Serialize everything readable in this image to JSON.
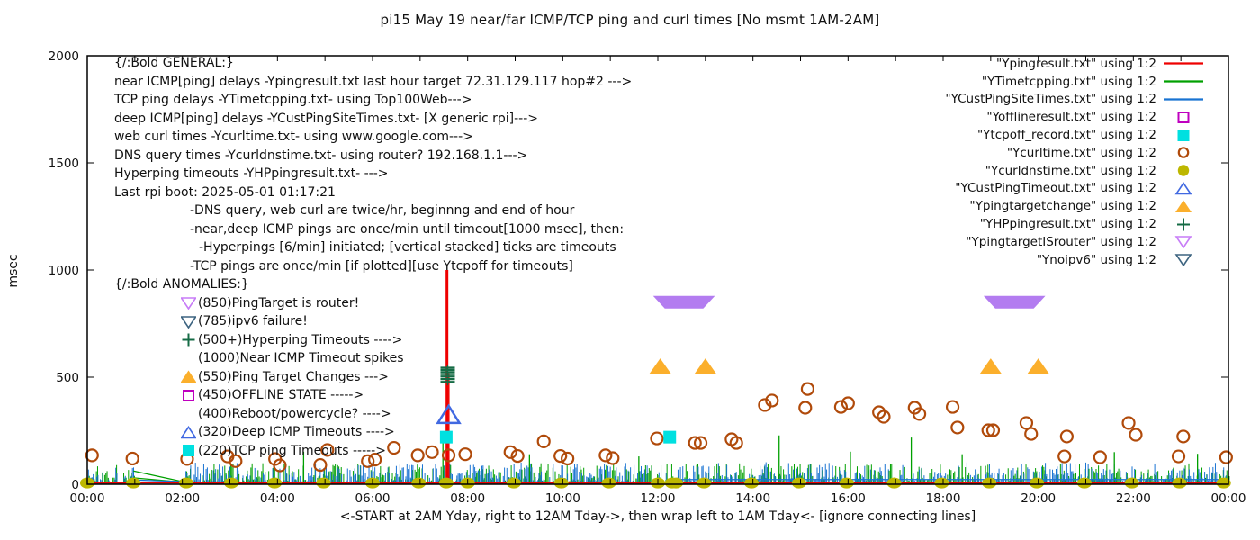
{
  "title": "pi15 May 19  near/far ICMP/TCP ping and curl times [No msmt 1AM-2AM]",
  "xlabel": "<-START at 2AM Yday, right to 12AM Tday->, then wrap left to 1AM Tday<- [ignore connecting lines]",
  "ylabel": "msec",
  "annotations": {
    "general": {
      "lines": [
        {
          "text": "{/:Bold GENERAL:}",
          "indent": 0
        },
        {
          "text": "near ICMP[ping] delays -Ypingresult.txt last hour target 72.31.129.117 hop#2 --->",
          "indent": 0
        },
        {
          "text": "TCP ping delays -YTimetcpping.txt- using Top100Web--->",
          "indent": 0
        },
        {
          "text": "deep ICMP[ping] delays -YCustPingSiteTimes.txt- [X generic rpi]--->",
          "indent": 0
        },
        {
          "text": "web curl times -Ycurltime.txt- using www.google.com--->",
          "indent": 0
        },
        {
          "text": "DNS query times -Ycurldnstime.txt- using router? 192.168.1.1--->",
          "indent": 0
        },
        {
          "text": "Hyperping timeouts -YHPpingresult.txt- --->",
          "indent": 0
        },
        {
          "text": "Last rpi boot: 2025-05-01 01:17:21",
          "indent": 0
        },
        {
          "text": "-DNS query, web curl are twice/hr, beginnng and end of hour",
          "indent": 1
        },
        {
          "text": "-near,deep ICMP pings are once/min until timeout[1000 msec], then:",
          "indent": 1
        },
        {
          "text": "-Hyperpings [6/min] initiated; [vertical stacked] ticks are timeouts",
          "indent": 2
        },
        {
          "text": "-TCP pings are once/min [if plotted][use Ytcpoff for timeouts]",
          "indent": 1
        }
      ]
    },
    "anomalies": {
      "header": "{/:Bold ANOMALIES:}",
      "lines": [
        {
          "marker": "tri-down-open",
          "color": "#c77cf7",
          "text": "(850)PingTarget is router!"
        },
        {
          "marker": "tri-down-open",
          "color": "#3d6480",
          "text": "(785)ipv6 failure!"
        },
        {
          "marker": "plus",
          "color": "#156b45",
          "text": "(500+)Hyperping Timeouts ---->"
        },
        {
          "marker": "none",
          "color": "",
          "text": "(1000)Near ICMP Timeout spikes"
        },
        {
          "marker": "tri-up-filled",
          "color": "#fbaf2c",
          "text": "(550)Ping Target Changes --->"
        },
        {
          "marker": "square-open",
          "color": "#bf00bf",
          "text": "(450)OFFLINE STATE ----->"
        },
        {
          "marker": "none",
          "color": "",
          "text": "(400)Reboot/powercycle? ---->"
        },
        {
          "marker": "tri-up-open",
          "color": "#4169e1",
          "text": "(320)Deep ICMP Timeouts ---->"
        },
        {
          "marker": "square-filled",
          "color": "#00e0e0",
          "text": "(220)TCP ping Timeouts ----->"
        }
      ]
    }
  },
  "legend": {
    "items": [
      {
        "label": "\"Ypingresult.txt\" using 1:2",
        "marker": "line",
        "color": "#ee0000"
      },
      {
        "label": "\"YTimetcpping.txt\" using 1:2",
        "marker": "line",
        "color": "#00a000"
      },
      {
        "label": "\"YCustPingSiteTimes.txt\" using 1:2",
        "marker": "line",
        "color": "#1973d2"
      },
      {
        "label": "\"Yofflineresult.txt\" using 1:2",
        "marker": "square-open",
        "color": "#bf00bf"
      },
      {
        "label": "\"Ytcpoff_record.txt\" using 1:2",
        "marker": "square-filled",
        "color": "#00e0e0"
      },
      {
        "label": "\"Ycurltime.txt\" using 1:2",
        "marker": "circle-open",
        "color": "#b04a0a"
      },
      {
        "label": "\"Ycurldnstime.txt\" using 1:2",
        "marker": "circle-filled",
        "color": "#bdb700"
      },
      {
        "label": "\"YCustPingTimeout.txt\" using 1:2",
        "marker": "tri-up-open",
        "color": "#4169e1"
      },
      {
        "label": "\"Ypingtargetchange\" using 1:2",
        "marker": "tri-up-filled",
        "color": "#fbaf2c"
      },
      {
        "label": "\"YHPpingresult.txt\" using 1:2",
        "marker": "plus",
        "color": "#156b45"
      },
      {
        "label": "\"YpingtargetISrouter\" using 1:2",
        "marker": "tri-down-open",
        "color": "#c77cf7"
      },
      {
        "label": "\"Ynoipv6\" using 1:2",
        "marker": "tri-down-open",
        "color": "#3d6480"
      }
    ]
  },
  "chart_data": {
    "type": "mixed",
    "title": "pi15 May 19  near/far ICMP/TCP ping and curl times [No msmt 1AM-2AM]",
    "x_axis": {
      "range_hours": [
        0,
        24
      ],
      "tick_every_hours": 1,
      "label_every_hours": 2,
      "labels": [
        "00:00",
        "02:00",
        "04:00",
        "06:00",
        "08:00",
        "10:00",
        "12:00",
        "14:00",
        "16:00",
        "18:00",
        "20:00",
        "22:00",
        "00:00"
      ]
    },
    "y_axis": {
      "label": "msec",
      "range": [
        0,
        2000
      ],
      "ticks": [
        0,
        500,
        1000,
        1500,
        2000
      ]
    },
    "grid": false,
    "legend_position": "top-right",
    "no_measurement_gap_hours": [
      1.0,
      2.05
    ],
    "noise": {
      "seed": 1337,
      "step_h": 0.025,
      "green_max_msec": 95,
      "blue_max_msec": 100
    },
    "series": [
      {
        "name": "Ypingresult.txt",
        "style": "line",
        "color": "#ee0000",
        "baseline_msec": 8,
        "spikes": [
          {
            "h": 7.565,
            "to_msec": 1000,
            "w": 3
          },
          {
            "h": 7.605,
            "to_msec": 520,
            "w": 1.5
          }
        ]
      },
      {
        "name": "YTimetcpping.txt",
        "style": "noise-line",
        "color": "#00a000",
        "tall_spikes": [
          [
            4.55,
            152
          ],
          [
            7.48,
            235
          ],
          [
            9.3,
            140
          ],
          [
            11.6,
            130
          ],
          [
            14.55,
            228
          ],
          [
            16.05,
            152
          ],
          [
            17.33,
            218
          ],
          [
            18.4,
            140
          ],
          [
            21.6,
            150
          ],
          [
            23.35,
            142
          ]
        ]
      },
      {
        "name": "YCustPingSiteTimes.txt",
        "style": "noise-line",
        "color": "#1973d2",
        "flat_band_after_h": 12.2,
        "flat_band_msec": [
          10,
          22
        ]
      },
      {
        "name": "Yofflineresult.txt",
        "style": "scatter-square-open",
        "color": "#bf00bf",
        "points": []
      },
      {
        "name": "Ytcpoff_record.txt",
        "style": "scatter-square-filled",
        "color": "#00e0e0",
        "points": [
          [
            7.55,
            220
          ],
          [
            12.25,
            220
          ]
        ]
      },
      {
        "name": "Ycurltime.txt",
        "style": "scatter-circle-open",
        "color": "#b04a0a",
        "points": [
          [
            0.1,
            135
          ],
          [
            0.95,
            120
          ],
          [
            2.1,
            118
          ],
          [
            2.95,
            130
          ],
          [
            3.12,
            108
          ],
          [
            3.95,
            118
          ],
          [
            4.05,
            88
          ],
          [
            4.9,
            90
          ],
          [
            5.05,
            160
          ],
          [
            5.9,
            108
          ],
          [
            6.05,
            115
          ],
          [
            6.45,
            170
          ],
          [
            6.95,
            135
          ],
          [
            7.25,
            150
          ],
          [
            7.6,
            135
          ],
          [
            7.95,
            140
          ],
          [
            8.9,
            150
          ],
          [
            9.05,
            132
          ],
          [
            9.6,
            200
          ],
          [
            9.95,
            132
          ],
          [
            10.1,
            120
          ],
          [
            10.9,
            135
          ],
          [
            11.05,
            122
          ],
          [
            11.98,
            214
          ],
          [
            12.78,
            193
          ],
          [
            12.9,
            193
          ],
          [
            13.55,
            210
          ],
          [
            13.65,
            193
          ],
          [
            14.25,
            370
          ],
          [
            14.4,
            391
          ],
          [
            15.1,
            357
          ],
          [
            15.15,
            445
          ],
          [
            15.85,
            361
          ],
          [
            16.0,
            378
          ],
          [
            16.65,
            336
          ],
          [
            16.75,
            315
          ],
          [
            17.4,
            357
          ],
          [
            17.5,
            328
          ],
          [
            18.2,
            361
          ],
          [
            18.3,
            265
          ],
          [
            18.95,
            252
          ],
          [
            19.05,
            252
          ],
          [
            19.75,
            286
          ],
          [
            19.85,
            235
          ],
          [
            20.55,
            130
          ],
          [
            20.6,
            223
          ],
          [
            21.3,
            126
          ],
          [
            21.9,
            286
          ],
          [
            22.05,
            231
          ],
          [
            22.95,
            130
          ],
          [
            23.05,
            223
          ],
          [
            23.95,
            126
          ]
        ]
      },
      {
        "name": "Ycurldnstime.txt",
        "style": "scatter-circle-filled",
        "color": "#bdb700",
        "msec": 6,
        "times": [
          0,
          0.97,
          2.08,
          3.03,
          3.94,
          4.97,
          6.0,
          6.97,
          7.55,
          8.0,
          8.97,
          9.97,
          10.97,
          12.0,
          12.3,
          12.38,
          12.97,
          13.97,
          14.97,
          15.97,
          16.97,
          17.97,
          18.97,
          19.97,
          20.97,
          21.97,
          22.97,
          23.9
        ]
      },
      {
        "name": "YCustPingTimeout.txt",
        "style": "scatter-tri-up-open",
        "color": "#4169e1",
        "points": [
          [
            7.6,
            320
          ]
        ]
      },
      {
        "name": "Ypingtargetchange",
        "style": "scatter-tri-up-filled",
        "color": "#fbaf2c",
        "points": [
          [
            12.05,
            550
          ],
          [
            13.0,
            550
          ],
          [
            19.0,
            550
          ],
          [
            20.0,
            550
          ]
        ]
      },
      {
        "name": "YHPpingresult.txt",
        "style": "hyperping-ticks",
        "color": "#156b45",
        "h": 7.58,
        "tick_msecs": [
          478,
          491,
          503,
          514,
          524,
          534,
          544
        ]
      },
      {
        "name": "YpingtargetISrouter",
        "style": "band-tri-down",
        "color": "#b37cf0",
        "bands": [
          {
            "h1": 11.9,
            "h2": 13.2,
            "msec": 850
          },
          {
            "h1": 18.85,
            "h2": 20.15,
            "msec": 850
          }
        ]
      },
      {
        "name": "Ynoipv6",
        "style": "scatter-tri-down-open",
        "color": "#3d6480",
        "points": []
      },
      {
        "name": "gap-connectors",
        "style": "connector-lines",
        "lines": [
          {
            "color": "#00a000",
            "from": [
              0.97,
              62
            ],
            "to": [
              2.05,
              10
            ]
          },
          {
            "color": "#00a000",
            "from": [
              0.97,
              30
            ],
            "to": [
              2.05,
              9
            ]
          },
          {
            "color": "#1973d2",
            "from": [
              0.97,
              20
            ],
            "to": [
              2.05,
              12
            ]
          }
        ]
      }
    ]
  }
}
